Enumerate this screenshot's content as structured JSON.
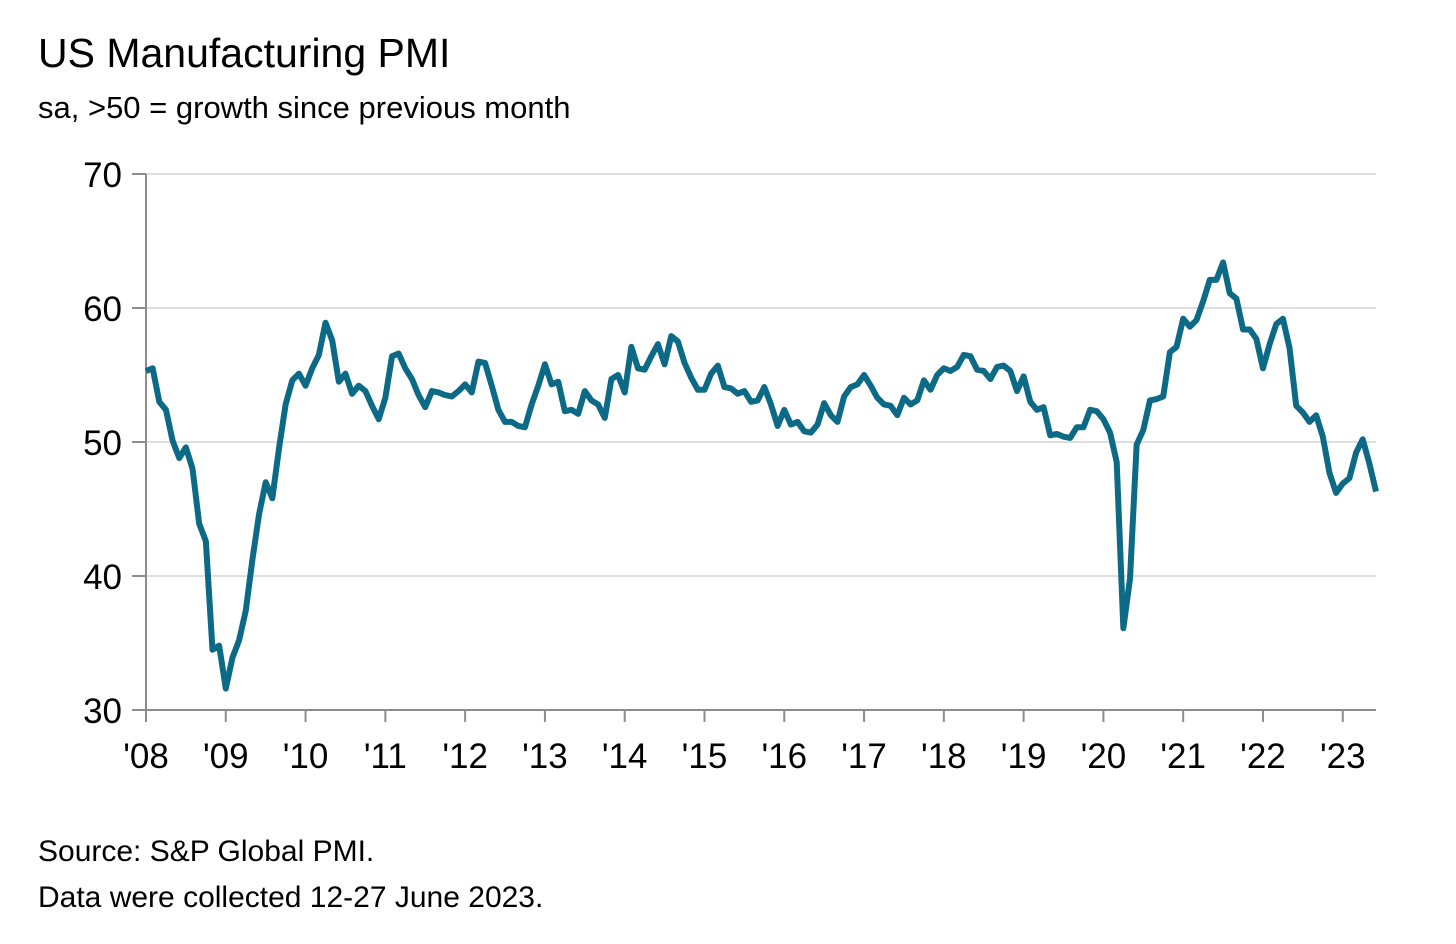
{
  "chart_data": {
    "type": "line",
    "title": "US Manufacturing PMI",
    "subtitle": "sa, >50 = growth since previous month",
    "xlabel": "",
    "ylabel": "",
    "ylim": [
      30,
      70
    ],
    "y_ticks": [
      30,
      40,
      50,
      60,
      70
    ],
    "x_range": [
      "2008-01",
      "2023-06"
    ],
    "x_tick_labels": [
      "'08",
      "'09",
      "'10",
      "'11",
      "'12",
      "'13",
      "'14",
      "'15",
      "'16",
      "'17",
      "'18",
      "'19",
      "'20",
      "'21",
      "'22",
      "'23"
    ],
    "grid": "horizontal",
    "line_color": "#0d6a86",
    "series": [
      {
        "name": "",
        "x": [
          "2008-01",
          "2008-02",
          "2008-03",
          "2008-04",
          "2008-05",
          "2008-06",
          "2008-07",
          "2008-08",
          "2008-09",
          "2008-10",
          "2008-11",
          "2008-12",
          "2009-01",
          "2009-02",
          "2009-03",
          "2009-04",
          "2009-05",
          "2009-06",
          "2009-07",
          "2009-08",
          "2009-09",
          "2009-10",
          "2009-11",
          "2009-12",
          "2010-01",
          "2010-02",
          "2010-03",
          "2010-04",
          "2010-05",
          "2010-06",
          "2010-07",
          "2010-08",
          "2010-09",
          "2010-10",
          "2010-11",
          "2010-12",
          "2011-01",
          "2011-02",
          "2011-03",
          "2011-04",
          "2011-05",
          "2011-06",
          "2011-07",
          "2011-08",
          "2011-09",
          "2011-10",
          "2011-11",
          "2011-12",
          "2012-01",
          "2012-02",
          "2012-03",
          "2012-04",
          "2012-05",
          "2012-06",
          "2012-07",
          "2012-08",
          "2012-09",
          "2012-10",
          "2012-11",
          "2012-12",
          "2013-01",
          "2013-02",
          "2013-03",
          "2013-04",
          "2013-05",
          "2013-06",
          "2013-07",
          "2013-08",
          "2013-09",
          "2013-10",
          "2013-11",
          "2013-12",
          "2014-01",
          "2014-02",
          "2014-03",
          "2014-04",
          "2014-05",
          "2014-06",
          "2014-07",
          "2014-08",
          "2014-09",
          "2014-10",
          "2014-11",
          "2014-12",
          "2015-01",
          "2015-02",
          "2015-03",
          "2015-04",
          "2015-05",
          "2015-06",
          "2015-07",
          "2015-08",
          "2015-09",
          "2015-10",
          "2015-11",
          "2015-12",
          "2016-01",
          "2016-02",
          "2016-03",
          "2016-04",
          "2016-05",
          "2016-06",
          "2016-07",
          "2016-08",
          "2016-09",
          "2016-10",
          "2016-11",
          "2016-12",
          "2017-01",
          "2017-02",
          "2017-03",
          "2017-04",
          "2017-05",
          "2017-06",
          "2017-07",
          "2017-08",
          "2017-09",
          "2017-10",
          "2017-11",
          "2017-12",
          "2018-01",
          "2018-02",
          "2018-03",
          "2018-04",
          "2018-05",
          "2018-06",
          "2018-07",
          "2018-08",
          "2018-09",
          "2018-10",
          "2018-11",
          "2018-12",
          "2019-01",
          "2019-02",
          "2019-03",
          "2019-04",
          "2019-05",
          "2019-06",
          "2019-07",
          "2019-08",
          "2019-09",
          "2019-10",
          "2019-11",
          "2019-12",
          "2020-01",
          "2020-02",
          "2020-03",
          "2020-04",
          "2020-05",
          "2020-06",
          "2020-07",
          "2020-08",
          "2020-09",
          "2020-10",
          "2020-11",
          "2020-12",
          "2021-01",
          "2021-02",
          "2021-03",
          "2021-04",
          "2021-05",
          "2021-06",
          "2021-07",
          "2021-08",
          "2021-09",
          "2021-10",
          "2021-11",
          "2021-12",
          "2022-01",
          "2022-02",
          "2022-03",
          "2022-04",
          "2022-05",
          "2022-06",
          "2022-07",
          "2022-08",
          "2022-09",
          "2022-10",
          "2022-11",
          "2022-12",
          "2023-01",
          "2023-02",
          "2023-03",
          "2023-04",
          "2023-05",
          "2023-06"
        ],
        "values": [
          55.3,
          55.5,
          53.0,
          52.4,
          50.1,
          48.8,
          49.6,
          48.0,
          43.9,
          42.6,
          34.5,
          34.8,
          31.6,
          33.9,
          35.2,
          37.4,
          41.2,
          44.6,
          47.0,
          45.8,
          49.5,
          52.8,
          54.6,
          55.1,
          54.2,
          55.5,
          56.5,
          58.9,
          57.6,
          54.5,
          55.1,
          53.6,
          54.2,
          53.8,
          52.7,
          51.7,
          53.3,
          56.4,
          56.6,
          55.5,
          54.7,
          53.5,
          52.6,
          53.8,
          53.7,
          53.5,
          53.4,
          53.8,
          54.3,
          53.7,
          56.0,
          55.9,
          54.2,
          52.4,
          51.5,
          51.5,
          51.2,
          51.1,
          52.8,
          54.2,
          55.8,
          54.3,
          54.5,
          52.3,
          52.4,
          52.1,
          53.8,
          53.1,
          52.8,
          51.8,
          54.7,
          55.0,
          53.7,
          57.1,
          55.5,
          55.4,
          56.4,
          57.3,
          55.8,
          57.9,
          57.5,
          55.9,
          54.8,
          53.9,
          53.9,
          55.1,
          55.7,
          54.1,
          54.0,
          53.6,
          53.8,
          53.0,
          53.1,
          54.1,
          52.8,
          51.2,
          52.4,
          51.3,
          51.5,
          50.8,
          50.7,
          51.3,
          52.9,
          52.0,
          51.5,
          53.4,
          54.1,
          54.3,
          55.0,
          54.2,
          53.3,
          52.8,
          52.7,
          52.0,
          53.3,
          52.8,
          53.1,
          54.6,
          53.9,
          55.0,
          55.5,
          55.3,
          55.6,
          56.5,
          56.4,
          55.4,
          55.3,
          54.7,
          55.6,
          55.7,
          55.3,
          53.8,
          54.9,
          53.0,
          52.4,
          52.6,
          50.5,
          50.6,
          50.4,
          50.3,
          51.1,
          51.1,
          52.4,
          52.3,
          51.7,
          50.7,
          48.5,
          36.1,
          39.8,
          49.8,
          50.9,
          53.1,
          53.2,
          53.4,
          56.7,
          57.1,
          59.2,
          58.6,
          59.1,
          60.5,
          62.1,
          62.1,
          63.4,
          61.1,
          60.7,
          58.4,
          58.4,
          57.7,
          55.5,
          57.3,
          58.8,
          59.2,
          57.0,
          52.7,
          52.2,
          51.5,
          52.0,
          50.4,
          47.7,
          46.2,
          46.9,
          47.3,
          49.2,
          50.2,
          48.4,
          46.3
        ]
      }
    ]
  },
  "footer": {
    "source": "Source: S&P Global PMI.",
    "collected": "Data were collected 12-27 June 2023."
  }
}
